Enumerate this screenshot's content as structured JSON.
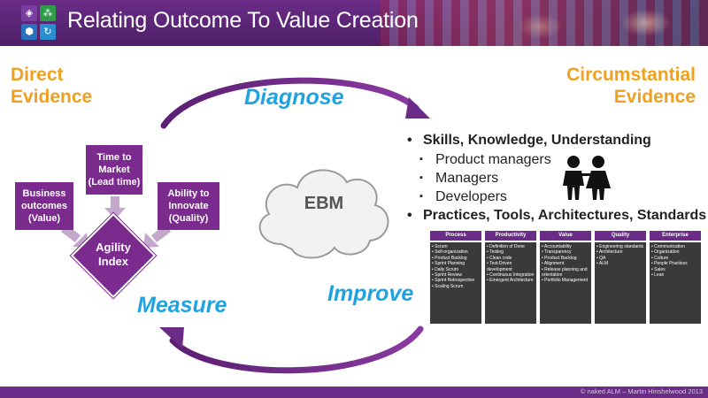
{
  "header": {
    "title": "Relating Outcome To Value Creation",
    "logo_icons": [
      "visual-studio-icon",
      "network-icon",
      "alm-shield-icon",
      "sync-icon"
    ]
  },
  "labels": {
    "direct_line1": "Direct",
    "direct_line2": "Evidence",
    "circ_line1": "Circumstantial",
    "circ_line2": "Evidence"
  },
  "cycle": {
    "diagnose": "Diagnose",
    "improve": "Improve",
    "measure": "Measure"
  },
  "measure_diagram": {
    "time_to_market": [
      "Time to",
      "Market",
      "(Lead time)"
    ],
    "business_outcomes": [
      "Business",
      "outcomes",
      "(Value)"
    ],
    "ability_to_innovate": [
      "Ability to",
      "Innovate",
      "(Quality)"
    ],
    "agility_index": [
      "Agility",
      "Index"
    ]
  },
  "cloud": {
    "label": "EBM"
  },
  "bullets": {
    "skills": "Skills, Knowledge, Understanding",
    "sub": [
      "Product managers",
      "Managers",
      "Developers"
    ],
    "practices": "Practices, Tools, Architectures, Standards"
  },
  "areas": [
    {
      "title": "Process",
      "items": [
        "Scrum",
        "Self-organization",
        "Product Backlog",
        "Sprint Planning",
        "Daily Scrum",
        "Sprint Review",
        "Sprint Retrospective",
        "Scaling Scrum"
      ]
    },
    {
      "title": "Productivity",
      "items": [
        "Definition of Done",
        "Testing",
        "Clean code",
        "Test-Driven development",
        "Continuous Integration",
        "Emergent Architecture"
      ]
    },
    {
      "title": "Value",
      "items": [
        "Accountability",
        "Transparency",
        "Product Backlog",
        "Alignment",
        "Release planning and orientation",
        "Portfolio Management"
      ]
    },
    {
      "title": "Quality",
      "items": [
        "Engineering standards",
        "Architecture",
        "QA",
        "ALM"
      ]
    },
    {
      "title": "Enterprise",
      "items": [
        "Communication",
        "Organization",
        "Culture",
        "People Practices",
        "Sales",
        "Lean"
      ]
    }
  ],
  "footer": {
    "copyright": "© naked ALM – Martin Hinshelwood 2013"
  },
  "colors": {
    "purple": "#7b2a8e",
    "header": "#6a2c87",
    "orange": "#f0a020",
    "blue": "#1fa3e0"
  }
}
